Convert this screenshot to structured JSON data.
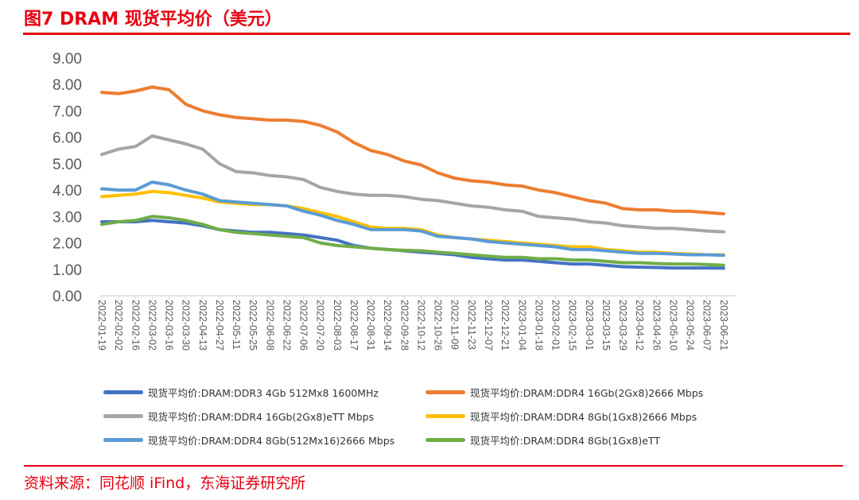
{
  "title": "图7  DRAM 现货平均价（美元）",
  "source": "资料来源：同花顺 iFind，东海证券研究所",
  "chart_data": {
    "type": "line",
    "title": "",
    "xlabel": "",
    "ylabel": "",
    "ylim": [
      0,
      9
    ],
    "yticks": [
      "0.00",
      "1.00",
      "2.00",
      "3.00",
      "4.00",
      "5.00",
      "6.00",
      "7.00",
      "8.00",
      "9.00"
    ],
    "grid": false,
    "legend_position": "bottom",
    "x": [
      "2022-01-19",
      "2022-02-02",
      "2022-02-16",
      "2022-03-02",
      "2022-03-16",
      "2022-03-30",
      "2022-04-13",
      "2022-04-27",
      "2022-05-11",
      "2022-05-25",
      "2022-06-08",
      "2022-06-22",
      "2022-07-06",
      "2022-07-20",
      "2022-08-03",
      "2022-08-17",
      "2022-08-31",
      "2022-09-14",
      "2022-09-28",
      "2022-10-12",
      "2022-10-26",
      "2022-11-09",
      "2022-11-23",
      "2022-12-07",
      "2022-12-21",
      "2023-01-04",
      "2023-01-18",
      "2023-02-01",
      "2023-02-15",
      "2023-03-01",
      "2023-03-15",
      "2023-03-29",
      "2023-04-12",
      "2023-04-26",
      "2023-05-10",
      "2023-05-24",
      "2023-06-07",
      "2023-06-21"
    ],
    "series": [
      {
        "name": "现货平均价:DRAM:DDR3 4Gb 512Mx8 1600MHz",
        "color": "#4472c4",
        "values": [
          2.8,
          2.8,
          2.8,
          2.85,
          2.8,
          2.75,
          2.65,
          2.5,
          2.45,
          2.4,
          2.4,
          2.35,
          2.3,
          2.2,
          2.1,
          1.9,
          1.8,
          1.75,
          1.7,
          1.65,
          1.6,
          1.55,
          1.45,
          1.4,
          1.35,
          1.35,
          1.3,
          1.25,
          1.2,
          1.2,
          1.15,
          1.1,
          1.08,
          1.07,
          1.05,
          1.05,
          1.05,
          1.04
        ]
      },
      {
        "name": "现货平均价:DRAM:DDR4 16Gb(2Gx8)2666 Mbps",
        "color": "#ed7d31",
        "values": [
          7.7,
          7.65,
          7.75,
          7.9,
          7.8,
          7.25,
          7.0,
          6.85,
          6.75,
          6.7,
          6.65,
          6.65,
          6.6,
          6.45,
          6.2,
          5.8,
          5.5,
          5.35,
          5.1,
          4.95,
          4.65,
          4.45,
          4.35,
          4.3,
          4.2,
          4.15,
          4.0,
          3.9,
          3.75,
          3.6,
          3.5,
          3.3,
          3.25,
          3.25,
          3.2,
          3.2,
          3.15,
          3.1
        ]
      },
      {
        "name": "现货平均价:DRAM:DDR4 16Gb(2Gx8)eTT Mbps",
        "color": "#a5a5a5",
        "values": [
          5.35,
          5.55,
          5.65,
          6.05,
          5.9,
          5.75,
          5.55,
          5.0,
          4.7,
          4.65,
          4.55,
          4.5,
          4.4,
          4.1,
          3.95,
          3.85,
          3.8,
          3.8,
          3.75,
          3.65,
          3.6,
          3.5,
          3.4,
          3.35,
          3.25,
          3.2,
          3.0,
          2.95,
          2.9,
          2.8,
          2.75,
          2.65,
          2.6,
          2.55,
          2.55,
          2.5,
          2.45,
          2.42
        ]
      },
      {
        "name": "现货平均价:DRAM:DDR4 8Gb(1Gx8)2666 Mbps",
        "color": "#ffc000",
        "values": [
          3.75,
          3.8,
          3.85,
          3.95,
          3.9,
          3.8,
          3.7,
          3.55,
          3.5,
          3.45,
          3.45,
          3.4,
          3.3,
          3.15,
          3.0,
          2.8,
          2.6,
          2.55,
          2.55,
          2.5,
          2.3,
          2.2,
          2.15,
          2.1,
          2.05,
          2.0,
          1.95,
          1.9,
          1.85,
          1.85,
          1.75,
          1.7,
          1.65,
          1.65,
          1.6,
          1.58,
          1.55,
          1.55
        ]
      },
      {
        "name": "现货平均价:DRAM:DDR4 8Gb(512Mx16)2666 Mbps",
        "color": "#5b9bd5",
        "values": [
          4.05,
          4.0,
          4.0,
          4.3,
          4.2,
          4.0,
          3.85,
          3.6,
          3.55,
          3.5,
          3.45,
          3.4,
          3.2,
          3.05,
          2.85,
          2.7,
          2.5,
          2.5,
          2.5,
          2.45,
          2.25,
          2.2,
          2.15,
          2.05,
          2.0,
          1.95,
          1.9,
          1.85,
          1.75,
          1.75,
          1.7,
          1.65,
          1.6,
          1.6,
          1.58,
          1.55,
          1.55,
          1.53
        ]
      },
      {
        "name": "现货平均价:DRAM:DDR4 8Gb(1Gx8)eTT",
        "color": "#70ad47",
        "values": [
          2.7,
          2.8,
          2.85,
          3.0,
          2.95,
          2.85,
          2.7,
          2.5,
          2.4,
          2.35,
          2.3,
          2.25,
          2.2,
          2.0,
          1.9,
          1.85,
          1.8,
          1.75,
          1.72,
          1.7,
          1.65,
          1.6,
          1.55,
          1.5,
          1.45,
          1.45,
          1.4,
          1.4,
          1.35,
          1.35,
          1.3,
          1.25,
          1.25,
          1.22,
          1.2,
          1.2,
          1.18,
          1.15
        ]
      }
    ]
  }
}
